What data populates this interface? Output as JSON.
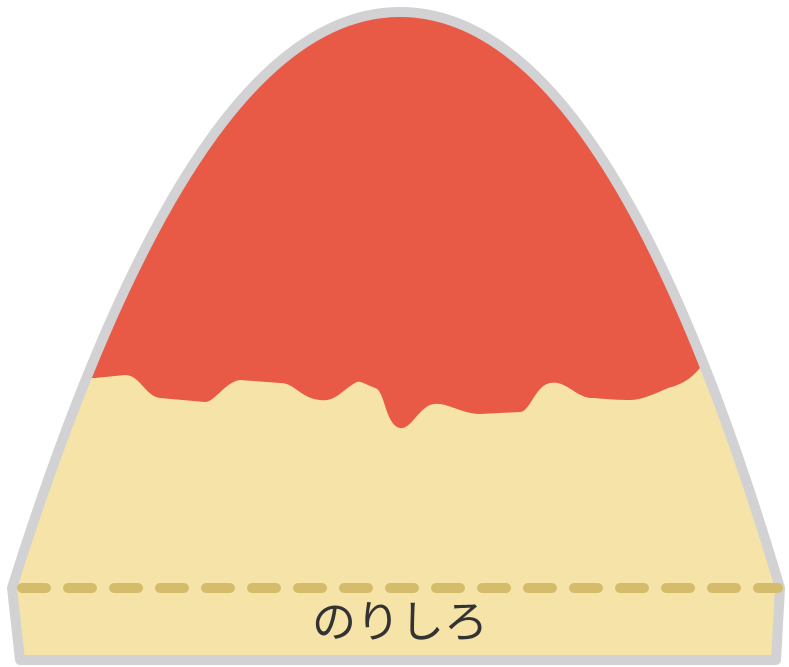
{
  "label": "のりしろ"
}
